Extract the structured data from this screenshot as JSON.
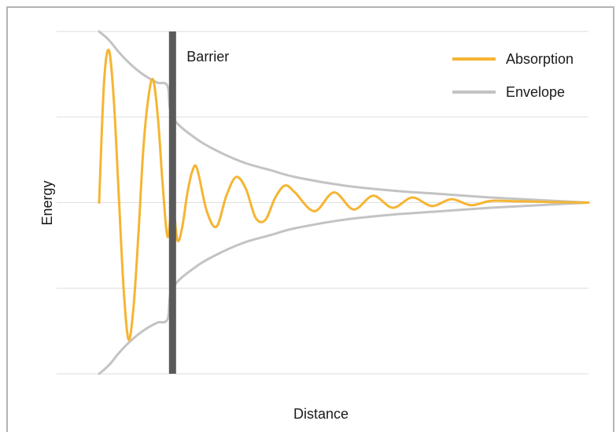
{
  "chart_data": {
    "type": "line",
    "title": "",
    "xlabel": "Distance",
    "ylabel": "Energy",
    "xlim": [
      0,
      10
    ],
    "ylim": [
      -1,
      1
    ],
    "grid": true,
    "legend_position": "top-right",
    "barrier": {
      "label": "Barrier",
      "x": 1.5,
      "color": "#5a5a5a"
    },
    "series": [
      {
        "name": "Absorption",
        "color": "#f5b533",
        "x": [
          0,
          0.1,
          0.2,
          0.3,
          0.4,
          0.5,
          0.6,
          0.7,
          0.8,
          0.9,
          1.0,
          1.1,
          1.2,
          1.3,
          1.4,
          1.5,
          1.6,
          1.7,
          1.8,
          1.9,
          2.0,
          2.2,
          2.4,
          2.6,
          2.8,
          3.0,
          3.2,
          3.4,
          3.6,
          3.8,
          4.0,
          4.4,
          4.8,
          5.2,
          5.6,
          6.0,
          6.4,
          6.8,
          7.2,
          7.6,
          8.0,
          8.5,
          9.0,
          9.5,
          10.0
        ],
        "y": [
          0,
          0.7,
          0.89,
          0.6,
          0.05,
          -0.5,
          -0.8,
          -0.62,
          -0.2,
          0.3,
          0.6,
          0.72,
          0.5,
          0.1,
          -0.2,
          0,
          -0.22,
          -0.14,
          0.05,
          0.18,
          0.2,
          -0.05,
          -0.14,
          0.04,
          0.15,
          0.08,
          -0.09,
          -0.1,
          0.03,
          0.1,
          0.06,
          -0.05,
          0.06,
          -0.04,
          0.04,
          -0.03,
          0.03,
          -0.02,
          0.02,
          -0.015,
          0.01,
          0.008,
          0.005,
          0.002,
          0
        ]
      },
      {
        "name": "Envelope",
        "color": "#c3c3c3",
        "x": [
          0,
          0.2,
          0.4,
          0.6,
          0.8,
          1.0,
          1.2,
          1.4,
          1.5,
          2.0,
          2.5,
          3.0,
          3.5,
          4.0,
          5.0,
          6.0,
          7.0,
          8.0,
          9.0,
          10.0
        ],
        "y": [
          1.0,
          0.95,
          0.88,
          0.82,
          0.77,
          0.73,
          0.7,
          0.68,
          0.5,
          0.37,
          0.29,
          0.23,
          0.19,
          0.15,
          0.1,
          0.07,
          0.05,
          0.03,
          0.015,
          0
        ]
      }
    ]
  }
}
